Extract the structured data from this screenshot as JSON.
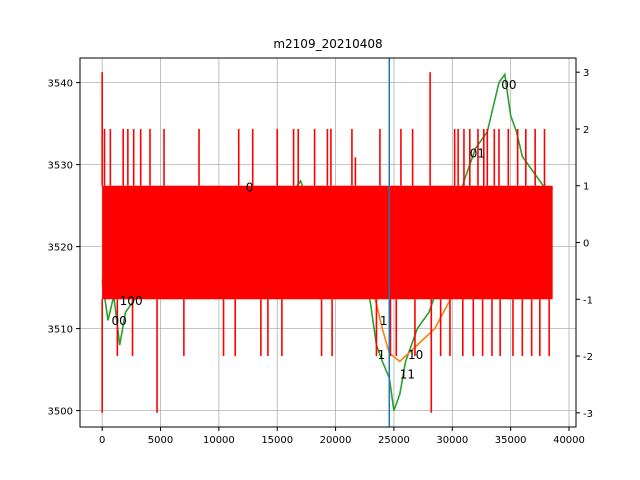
{
  "chart_data": {
    "type": "line",
    "title": "m2109_20210408",
    "grid": true,
    "x_axis": {
      "range": [
        -1900,
        40600
      ],
      "ticks": [
        0,
        5000,
        10000,
        15000,
        20000,
        25000,
        30000,
        35000,
        40000
      ]
    },
    "y_left": {
      "range": [
        3498,
        3543
      ],
      "ticks": [
        3500,
        3510,
        3520,
        3530,
        3540
      ]
    },
    "y_right": {
      "range": [
        -3.25,
        3.25
      ],
      "ticks": [
        -3,
        -2,
        -1,
        0,
        1,
        2,
        3
      ]
    },
    "vertical_line": {
      "x": 24600,
      "color": "#1f77b4"
    },
    "series": [
      {
        "axis": "left",
        "color": "#2ca02c",
        "points": [
          [
            0,
            3516
          ],
          [
            500,
            3511
          ],
          [
            1000,
            3514
          ],
          [
            1500,
            3508
          ],
          [
            2000,
            3512
          ],
          [
            3000,
            3514
          ],
          [
            4000,
            3516
          ],
          [
            6000,
            3519
          ],
          [
            8000,
            3521
          ],
          [
            10000,
            3522
          ],
          [
            12000,
            3524
          ],
          [
            14000,
            3525
          ],
          [
            16000,
            3526
          ],
          [
            17000,
            3528
          ],
          [
            18000,
            3524
          ],
          [
            20000,
            3522
          ],
          [
            22000,
            3520
          ],
          [
            23000,
            3513
          ],
          [
            23500,
            3508
          ],
          [
            24000,
            3506
          ],
          [
            24600,
            3504
          ],
          [
            25000,
            3500
          ],
          [
            25500,
            3502
          ],
          [
            26000,
            3506
          ],
          [
            27000,
            3510
          ],
          [
            28000,
            3512
          ],
          [
            29000,
            3516
          ],
          [
            30000,
            3522
          ],
          [
            31000,
            3528
          ],
          [
            32000,
            3532
          ],
          [
            33000,
            3534
          ],
          [
            33500,
            3537
          ],
          [
            34000,
            3540
          ],
          [
            34500,
            3541
          ],
          [
            35000,
            3536
          ],
          [
            35500,
            3534
          ],
          [
            36000,
            3531
          ],
          [
            37000,
            3529
          ],
          [
            38000,
            3527
          ],
          [
            38600,
            3527
          ]
        ]
      },
      {
        "axis": "left",
        "color": "#ff7f0e",
        "points": [
          [
            0,
            3516
          ],
          [
            5000,
            3518
          ],
          [
            10000,
            3520
          ],
          [
            15000,
            3521
          ],
          [
            20000,
            3520
          ],
          [
            23000,
            3516
          ],
          [
            24000,
            3510
          ],
          [
            24600,
            3507
          ],
          [
            25500,
            3506
          ],
          [
            27000,
            3508
          ],
          [
            28500,
            3510
          ],
          [
            30000,
            3514
          ],
          [
            32000,
            3520
          ],
          [
            34000,
            3524
          ],
          [
            36000,
            3526
          ],
          [
            38600,
            3527
          ]
        ]
      },
      {
        "axis": "right",
        "color": "#ff0000",
        "band": [
          -1,
          1
        ],
        "spikes_up": [
          [
            0,
            3
          ],
          [
            200,
            2
          ],
          [
            700,
            2
          ],
          [
            1800,
            2
          ],
          [
            2200,
            2
          ],
          [
            2700,
            2
          ],
          [
            3300,
            2
          ],
          [
            4100,
            2
          ],
          [
            5300,
            2
          ],
          [
            8300,
            2
          ],
          [
            11700,
            2
          ],
          [
            12900,
            2
          ],
          [
            15000,
            2
          ],
          [
            16400,
            2
          ],
          [
            16800,
            2
          ],
          [
            18200,
            2
          ],
          [
            19300,
            2
          ],
          [
            19600,
            2
          ],
          [
            21400,
            2
          ],
          [
            21700,
            1.5
          ],
          [
            23800,
            2
          ],
          [
            25600,
            2
          ],
          [
            26600,
            2
          ],
          [
            28100,
            3
          ],
          [
            30200,
            2
          ],
          [
            30500,
            2
          ],
          [
            31000,
            2
          ],
          [
            31500,
            2
          ],
          [
            32200,
            2
          ],
          [
            32700,
            2
          ],
          [
            33000,
            2
          ],
          [
            33600,
            2
          ],
          [
            34000,
            2
          ],
          [
            34800,
            2
          ],
          [
            35600,
            2
          ],
          [
            36300,
            2
          ],
          [
            37100,
            2
          ],
          [
            37900,
            2
          ]
        ],
        "spikes_down": [
          [
            0,
            -3
          ],
          [
            1300,
            -2
          ],
          [
            2600,
            -2
          ],
          [
            4700,
            -3
          ],
          [
            7000,
            -2
          ],
          [
            10400,
            -2
          ],
          [
            11400,
            -2
          ],
          [
            13600,
            -2
          ],
          [
            14200,
            -2
          ],
          [
            15400,
            -2
          ],
          [
            18800,
            -2
          ],
          [
            19700,
            -2
          ],
          [
            23500,
            -2
          ],
          [
            24700,
            -2
          ],
          [
            25200,
            -2
          ],
          [
            26800,
            -2
          ],
          [
            28200,
            -3
          ],
          [
            29000,
            -2
          ],
          [
            29800,
            -2
          ],
          [
            30900,
            -2
          ],
          [
            31800,
            -2
          ],
          [
            32600,
            -2
          ],
          [
            33400,
            -2
          ],
          [
            34100,
            -2
          ],
          [
            35200,
            -2
          ],
          [
            36000,
            -2
          ],
          [
            36800,
            -2
          ],
          [
            37500,
            -2
          ],
          [
            38300,
            -2
          ]
        ],
        "x_end": 38600
      }
    ],
    "annotations": [
      {
        "text": "00",
        "x": 34200,
        "y_right": 2.7
      },
      {
        "text": "01",
        "x": 31500,
        "y_right": 1.5
      },
      {
        "text": "0",
        "x": 12300,
        "y_right": 0.9
      },
      {
        "text": "100",
        "x": 1500,
        "y_right": -1.1
      },
      {
        "text": "00",
        "x": 800,
        "y_right": -1.45
      },
      {
        "text": "1",
        "x": 23800,
        "y_right": -1.45
      },
      {
        "text": "1",
        "x": 23600,
        "y_right": -2.05
      },
      {
        "text": "10",
        "x": 26200,
        "y_right": -2.05
      },
      {
        "text": "11",
        "x": 25500,
        "y_right": -2.4
      }
    ]
  }
}
